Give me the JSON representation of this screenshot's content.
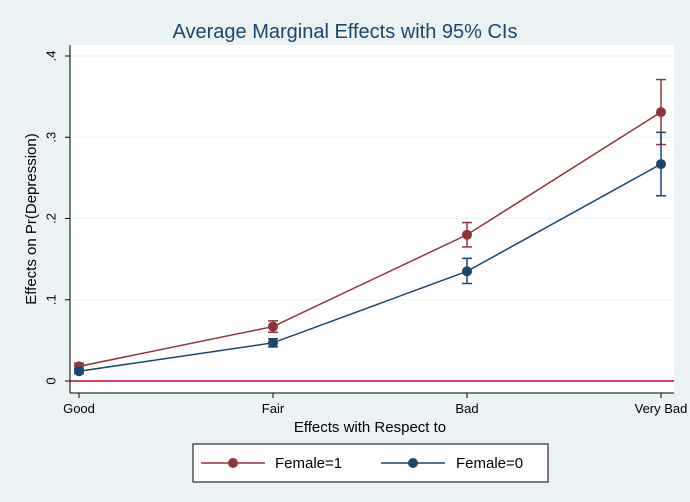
{
  "chart_data": {
    "type": "line",
    "title": "Average Marginal Effects with 95% CIs",
    "xlabel": "Effects with Respect to",
    "ylabel": "Effects on Pr(Depression)",
    "categories": [
      "Good",
      "Fair",
      "Bad",
      "Very Bad"
    ],
    "ylim": [
      0,
      0.4
    ],
    "yticks": [
      {
        "value": 0,
        "label": "0"
      },
      {
        "value": 0.1,
        "label": ".1"
      },
      {
        "value": 0.2,
        "label": ".2"
      },
      {
        "value": 0.3,
        "label": ".3"
      },
      {
        "value": 0.4,
        "label": ".4"
      }
    ],
    "grid": true,
    "reference_line": {
      "y": 0,
      "color": "#c10534"
    },
    "legend_position": "bottom",
    "series": [
      {
        "name": "Female=1",
        "color": "#90353b",
        "values": [
          0.018,
          0.067,
          0.18,
          0.331
        ],
        "ci_low": [
          0.014,
          0.06,
          0.165,
          0.291
        ],
        "ci_high": [
          0.022,
          0.074,
          0.195,
          0.371
        ]
      },
      {
        "name": "Female=0",
        "color": "#1a476f",
        "values": [
          0.012,
          0.047,
          0.135,
          0.267
        ],
        "ci_low": [
          0.009,
          0.042,
          0.12,
          0.228
        ],
        "ci_high": [
          0.015,
          0.052,
          0.151,
          0.306
        ]
      }
    ]
  }
}
